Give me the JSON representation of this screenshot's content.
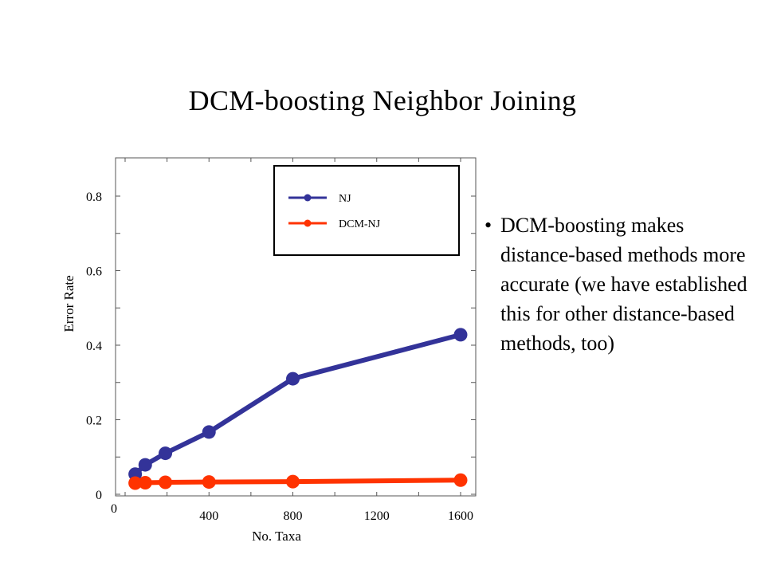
{
  "slide": {
    "title": "DCM-boosting Neighbor Joining",
    "bullets": [
      "DCM-boosting makes distance-based methods more accurate (we have established this for other distance-based methods, too)"
    ]
  },
  "chart_data": {
    "type": "line",
    "title": "",
    "xlabel": "No. Taxa",
    "ylabel": "Error Rate",
    "xlim": [
      0,
      1600
    ],
    "ylim": [
      0,
      0.9
    ],
    "x_ticks": [
      0,
      400,
      800,
      1200,
      1600
    ],
    "x_tick_labels": [
      "0",
      "400",
      "800",
      "1200",
      "1600"
    ],
    "y_ticks": [
      0,
      0.2,
      0.4,
      0.6,
      0.8
    ],
    "y_tick_labels": [
      "0",
      "0.2",
      "0.4",
      "0.6",
      "0.8"
    ],
    "grid": false,
    "legend_position": "top-right",
    "series": [
      {
        "name": "NJ",
        "color": "#333399",
        "x": [
          48,
          96,
          192,
          400,
          800,
          1600
        ],
        "y": [
          0.054,
          0.079,
          0.11,
          0.167,
          0.31,
          0.428
        ]
      },
      {
        "name": "DCM-NJ",
        "color": "#ff3300",
        "x": [
          48,
          96,
          192,
          400,
          800,
          1600
        ],
        "y": [
          0.03,
          0.031,
          0.032,
          0.033,
          0.034,
          0.038
        ]
      }
    ]
  }
}
